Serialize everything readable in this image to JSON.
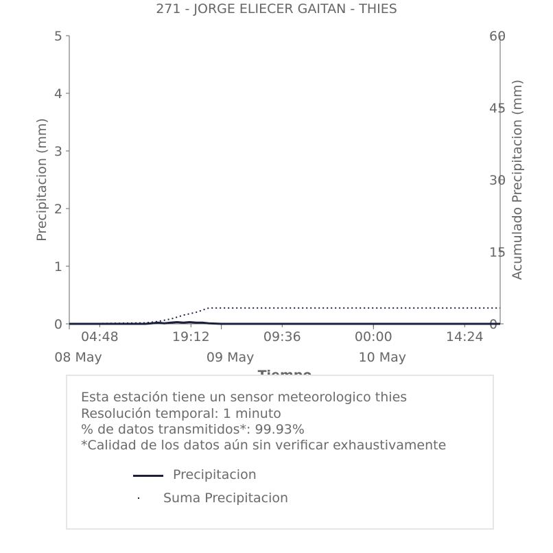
{
  "chart_data": {
    "type": "line",
    "title": "271 - JORGE ELIECER GAITAN - THIES",
    "xlabel": "Tiempo",
    "ylabel": "Precipitacion (mm)",
    "y2label": "Acumulado Precipitacion (mm)",
    "ylim": [
      0,
      5
    ],
    "y2lim": [
      0,
      60
    ],
    "y_ticks": [
      "0",
      "1",
      "2",
      "3",
      "4",
      "5"
    ],
    "y2_ticks": [
      "0",
      "15",
      "30",
      "45",
      "60"
    ],
    "x_ticks": [
      "04:48",
      "19:12",
      "09:36",
      "00:00",
      "14:24"
    ],
    "x_date_labels": [
      "08 May",
      "09 May",
      "10 May"
    ],
    "x_range": [
      "2024-05-08T00:00",
      "2024-05-10T20:00"
    ],
    "grid": false,
    "series": [
      {
        "name": "Precipitacion",
        "axis": "left",
        "style": "solid",
        "color": "#1b1f3b",
        "x": [
          "2024-05-08T00:00",
          "2024-05-08T12:00",
          "2024-05-08T13:00",
          "2024-05-08T14:00",
          "2024-05-08T15:00",
          "2024-05-08T16:00",
          "2024-05-08T17:00",
          "2024-05-08T18:00",
          "2024-05-08T19:00",
          "2024-05-08T20:00",
          "2024-05-08T21:00",
          "2024-05-08T22:00",
          "2024-05-09T00:00",
          "2024-05-10T20:00"
        ],
        "y": [
          0,
          0,
          0.01,
          0.02,
          0.01,
          0.02,
          0.03,
          0.02,
          0.03,
          0.02,
          0.02,
          0.01,
          0,
          0
        ]
      },
      {
        "name": "Suma Precipitacion",
        "axis": "right",
        "style": "dotted",
        "color": "#1b1f3b",
        "x": [
          "2024-05-08T00:00",
          "2024-05-08T12:00",
          "2024-05-08T14:00",
          "2024-05-08T16:00",
          "2024-05-08T18:00",
          "2024-05-08T20:00",
          "2024-05-08T22:00",
          "2024-05-08T23:00",
          "2024-05-10T20:00"
        ],
        "y": [
          0,
          0.2,
          0.5,
          1.0,
          1.8,
          2.4,
          3.3,
          3.3,
          3.3
        ]
      }
    ]
  },
  "info": {
    "line1": "Esta estación tiene un sensor meteorologico thies",
    "line2": "Resolución temporal: 1 minuto",
    "line3": "% de datos transmitidos*: 99.93%",
    "line4": "*Calidad de los datos aún sin verificar exhaustivamente"
  },
  "legend": {
    "item1": "Precipitacion",
    "item2": "Suma Precipitacion"
  }
}
